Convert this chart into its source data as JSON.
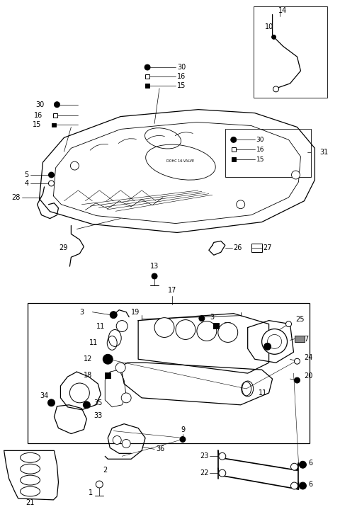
{
  "bg_color": "#ffffff",
  "fig_width": 4.8,
  "fig_height": 7.16,
  "dpi": 100,
  "xlim": [
    0,
    480
  ],
  "ylim": [
    0,
    716
  ]
}
